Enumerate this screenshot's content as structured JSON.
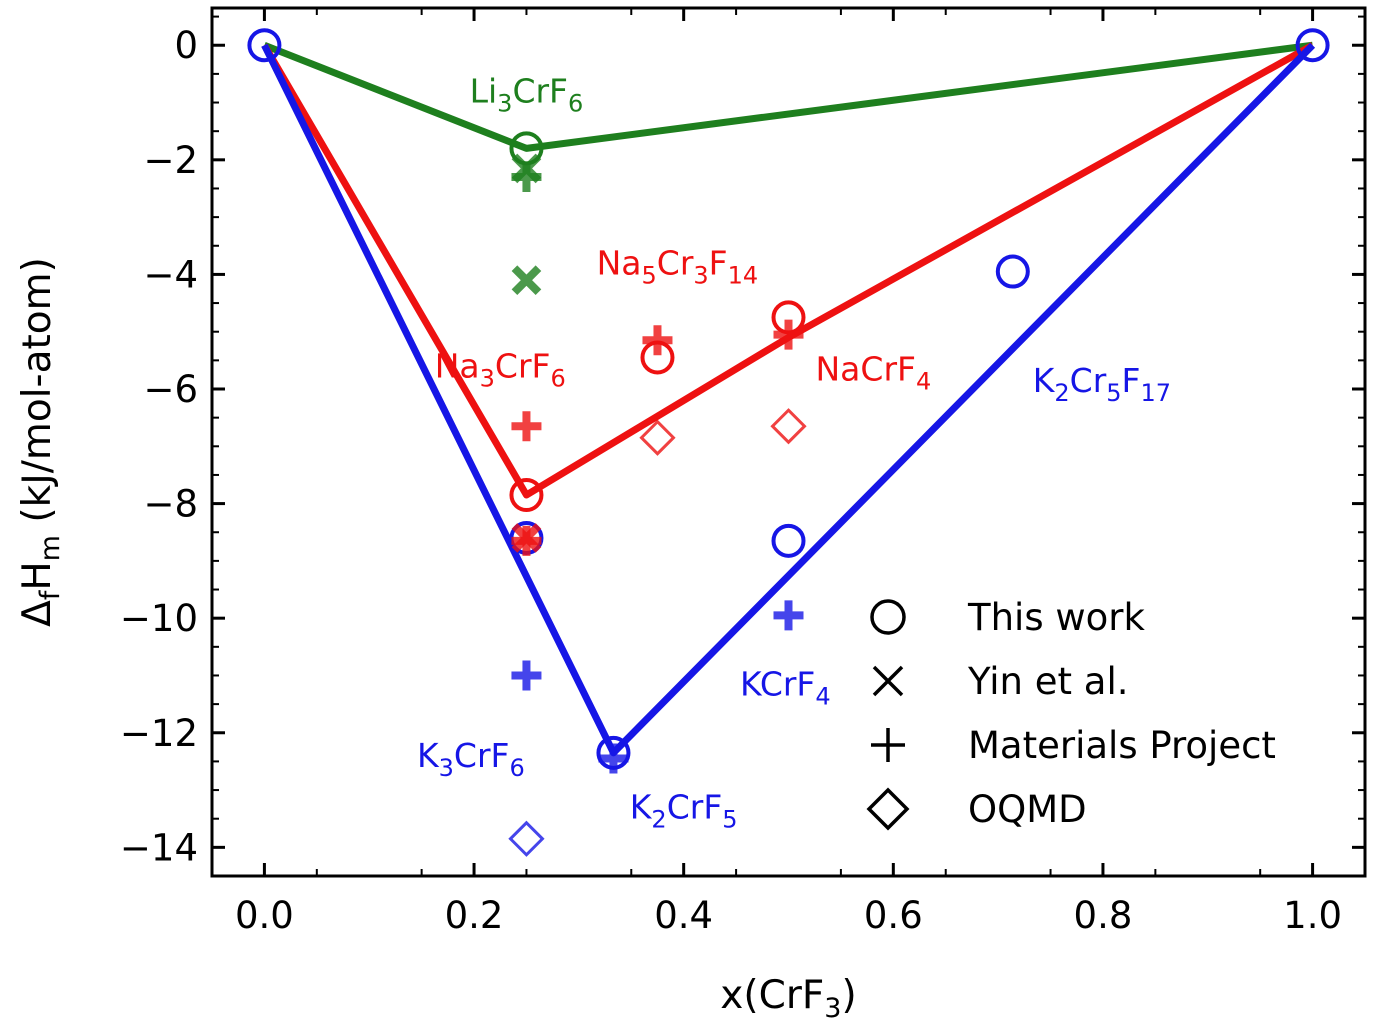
{
  "chart_data": {
    "type": "scatter",
    "xlabel_main": "x(CrF",
    "xlabel_sub": "3",
    "xlabel_end": ")",
    "ylabel_main": "Δ",
    "ylabel_sub1": "f",
    "ylabel_mid": "H",
    "ylabel_sub2": "m",
    "ylabel_end": " (kJ/mol-atom)",
    "xlim": [
      -0.05,
      1.05
    ],
    "ylim": [
      -14.5,
      0.65
    ],
    "xticks": [
      0.0,
      0.2,
      0.4,
      0.6,
      0.8,
      1.0
    ],
    "xtick_labels": [
      "0.0",
      "0.2",
      "0.4",
      "0.6",
      "0.8",
      "1.0"
    ],
    "yticks": [
      0,
      -2,
      -4,
      -6,
      -8,
      -10,
      -12,
      -14
    ],
    "ytick_labels": [
      "0",
      "−2",
      "−4",
      "−6",
      "−8",
      "−10",
      "−12",
      "−14"
    ],
    "grid": false,
    "colors": {
      "Li": "#1e7f1e",
      "Na": "#ee1111",
      "K": "#1616e6"
    },
    "hulls": [
      {
        "system": "Li",
        "x": [
          0.0,
          0.25,
          1.0
        ],
        "y": [
          0,
          -1.8,
          0
        ]
      },
      {
        "system": "Na",
        "x": [
          0.0,
          0.25,
          0.5,
          1.0
        ],
        "y": [
          0,
          -7.85,
          -5.1,
          0
        ]
      },
      {
        "system": "K",
        "x": [
          0.0,
          0.333,
          1.0
        ],
        "y": [
          0,
          -12.35,
          0
        ]
      }
    ],
    "series": [
      {
        "name": "This work",
        "marker": "circle",
        "points": [
          {
            "x": 0.0,
            "y": 0,
            "system": "K"
          },
          {
            "x": 1.0,
            "y": 0,
            "system": "K"
          },
          {
            "x": 0.25,
            "y": -1.8,
            "system": "Li"
          },
          {
            "x": 0.25,
            "y": -7.85,
            "system": "Na"
          },
          {
            "x": 0.375,
            "y": -5.45,
            "system": "Na"
          },
          {
            "x": 0.5,
            "y": -4.75,
            "system": "Na"
          },
          {
            "x": 0.25,
            "y": -8.6,
            "system": "K"
          },
          {
            "x": 0.333,
            "y": -12.35,
            "system": "K"
          },
          {
            "x": 0.5,
            "y": -8.65,
            "system": "K"
          },
          {
            "x": 0.714,
            "y": -3.95,
            "system": "K"
          }
        ]
      },
      {
        "name": "Yin et al.",
        "marker": "x",
        "points": [
          {
            "x": 0.25,
            "y": -2.15,
            "system": "Li"
          },
          {
            "x": 0.25,
            "y": -4.1,
            "system": "Li"
          },
          {
            "x": 0.25,
            "y": -8.6,
            "system": "Na"
          }
        ]
      },
      {
        "name": "Materials Project",
        "marker": "plus",
        "points": [
          {
            "x": 0.25,
            "y": -2.3,
            "system": "Li"
          },
          {
            "x": 0.25,
            "y": -6.65,
            "system": "Na"
          },
          {
            "x": 0.25,
            "y": -8.65,
            "system": "Na"
          },
          {
            "x": 0.375,
            "y": -5.15,
            "system": "Na"
          },
          {
            "x": 0.5,
            "y": -5.05,
            "system": "Na"
          },
          {
            "x": 0.25,
            "y": -11.0,
            "system": "K"
          },
          {
            "x": 0.333,
            "y": -12.45,
            "system": "K"
          },
          {
            "x": 0.5,
            "y": -9.95,
            "system": "K"
          }
        ]
      },
      {
        "name": "OQMD",
        "marker": "diamond",
        "points": [
          {
            "x": 0.375,
            "y": -6.85,
            "system": "Na"
          },
          {
            "x": 0.5,
            "y": -6.65,
            "system": "Na"
          },
          {
            "x": 0.25,
            "y": -13.85,
            "system": "K"
          }
        ]
      }
    ],
    "annotations": [
      {
        "system": "Li",
        "x": 0.25,
        "y": -1.0,
        "parts": [
          [
            "Li",
            false
          ],
          [
            "3",
            true
          ],
          [
            "CrF",
            false
          ],
          [
            "6",
            true
          ]
        ]
      },
      {
        "system": "Na",
        "x": 0.394,
        "y": -4.0,
        "parts": [
          [
            "Na",
            false
          ],
          [
            "5",
            true
          ],
          [
            "Cr",
            false
          ],
          [
            "3",
            true
          ],
          [
            "F",
            false
          ],
          [
            "14",
            true
          ]
        ]
      },
      {
        "system": "Na",
        "x": 0.225,
        "y": -5.8,
        "parts": [
          [
            "Na",
            false
          ],
          [
            "3",
            true
          ],
          [
            "CrF",
            false
          ],
          [
            "6",
            true
          ]
        ]
      },
      {
        "system": "Na",
        "x": 0.581,
        "y": -5.85,
        "parts": [
          [
            "NaCrF",
            false
          ],
          [
            "4",
            true
          ]
        ]
      },
      {
        "system": "K",
        "x": 0.799,
        "y": -6.05,
        "parts": [
          [
            "K",
            false
          ],
          [
            "2",
            true
          ],
          [
            "Cr",
            false
          ],
          [
            "5",
            true
          ],
          [
            "F",
            false
          ],
          [
            "17",
            true
          ]
        ]
      },
      {
        "system": "K",
        "x": 0.497,
        "y": -11.35,
        "parts": [
          [
            "KCrF",
            false
          ],
          [
            "4",
            true
          ]
        ]
      },
      {
        "system": "K",
        "x": 0.197,
        "y": -12.6,
        "parts": [
          [
            "K",
            false
          ],
          [
            "3",
            true
          ],
          [
            "CrF",
            false
          ],
          [
            "6",
            true
          ]
        ]
      },
      {
        "system": "K",
        "x": 0.4,
        "y": -13.5,
        "parts": [
          [
            "K",
            false
          ],
          [
            "2",
            true
          ],
          [
            "CrF",
            false
          ],
          [
            "5",
            true
          ]
        ]
      }
    ],
    "legend": {
      "position": "lower-right",
      "entries": [
        {
          "marker": "circle",
          "label": "This work"
        },
        {
          "marker": "x",
          "label": "Yin et al."
        },
        {
          "marker": "plus",
          "label": "Materials Project"
        },
        {
          "marker": "diamond",
          "label": "OQMD"
        }
      ]
    }
  }
}
